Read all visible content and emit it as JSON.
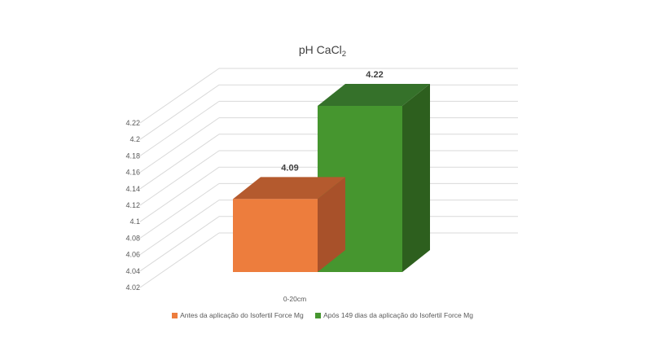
{
  "chart_data": {
    "type": "bar",
    "title": "pH CaCl",
    "title_subscript": "2",
    "categories": [
      "0-20cm"
    ],
    "series": [
      {
        "name": "Antes da aplicação do Isofertil Force Mg",
        "values": [
          4.09
        ],
        "label": "4.09",
        "color": "#ED7D3D"
      },
      {
        "name": "Após 149 dias da aplicação do Isofertil Force Mg",
        "values": [
          4.22
        ],
        "label": "4.22",
        "color": "#46962F"
      }
    ],
    "y_ticks": [
      "4.02",
      "4.04",
      "4.06",
      "4.08",
      "4.1",
      "4.12",
      "4.14",
      "4.16",
      "4.18",
      "4.2",
      "4.22"
    ],
    "ylim": [
      4.02,
      4.22
    ],
    "grid": true,
    "style": "3d-clustered-column",
    "legend_position": "bottom"
  }
}
